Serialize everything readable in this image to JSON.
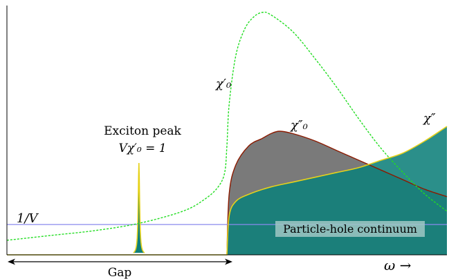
{
  "colors": {
    "chi0_prime": "#22dd22",
    "chi0_double_prime_fill": "#7a7a7a",
    "chi0_double_prime_line": "#8b1a00",
    "chi_double_prime_fill": "#0e7f7a",
    "chi_double_prime_line": "#e6d21a",
    "inverse_V": "#8a8aee",
    "axes": "#000000",
    "continuum_box": "#9fc7c4"
  },
  "chart_data": {
    "type": "line",
    "title": "",
    "xlabel": "ω →",
    "ylabel": "",
    "xlim": [
      0,
      1
    ],
    "ylim": [
      0,
      1
    ],
    "grid": false,
    "legend": "none",
    "gap_edge": 0.5,
    "exciton_position": 0.3,
    "inverse_V_level": 0.125,
    "series": [
      {
        "name": "χ′₀",
        "style": "dotted",
        "x": [
          0,
          0.1,
          0.2,
          0.3,
          0.4,
          0.45,
          0.48,
          0.495,
          0.5,
          0.505,
          0.52,
          0.54,
          0.56,
          0.58,
          0.6,
          0.65,
          0.7,
          0.75,
          0.8,
          0.85,
          0.9,
          0.95,
          1.0
        ],
        "y": [
          0.06,
          0.08,
          0.1,
          0.13,
          0.18,
          0.23,
          0.28,
          0.34,
          0.45,
          0.62,
          0.82,
          0.93,
          0.98,
          1.0,
          0.99,
          0.92,
          0.81,
          0.69,
          0.56,
          0.44,
          0.34,
          0.25,
          0.18
        ]
      },
      {
        "name": "χ″₀",
        "style": "filled",
        "x": [
          0.5,
          0.505,
          0.52,
          0.55,
          0.58,
          0.6,
          0.62,
          0.65,
          0.7,
          0.75,
          0.8,
          0.85,
          0.9,
          0.95,
          1.0
        ],
        "y": [
          0,
          0.25,
          0.37,
          0.45,
          0.48,
          0.5,
          0.51,
          0.5,
          0.47,
          0.43,
          0.39,
          0.35,
          0.31,
          0.27,
          0.24
        ]
      },
      {
        "name": "χ″",
        "style": "filled",
        "x": [
          0.5,
          0.505,
          0.52,
          0.55,
          0.6,
          0.65,
          0.7,
          0.75,
          0.8,
          0.85,
          0.9,
          0.95,
          1.0
        ],
        "y": [
          0,
          0.16,
          0.22,
          0.25,
          0.28,
          0.3,
          0.32,
          0.34,
          0.36,
          0.39,
          0.42,
          0.47,
          0.53
        ]
      }
    ],
    "annotations": {
      "inverse_V": "1/V",
      "exciton_title": "Exciton peak",
      "exciton_condition": "Vχ′₀ = 1",
      "chi0_prime": "χ′₀",
      "chi0_double_prime": "χ″₀",
      "chi_double_prime": "χ″",
      "continuum": "Particle-hole continuum",
      "gap": "Gap",
      "omega_axis": "ω →"
    }
  }
}
